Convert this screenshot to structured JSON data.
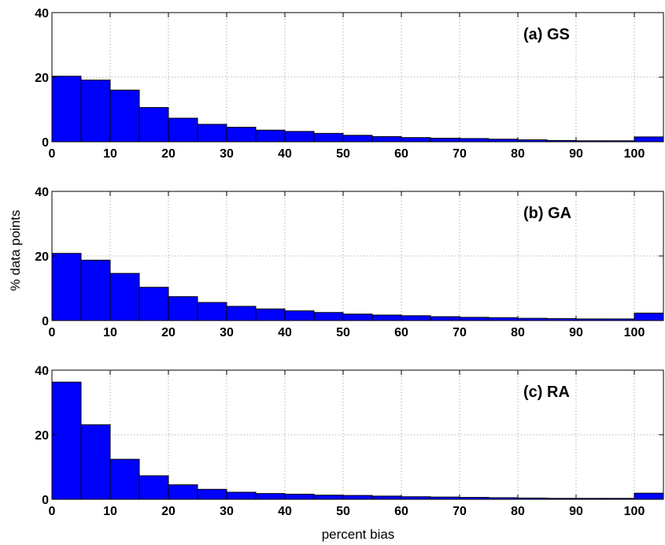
{
  "figure": {
    "ylabel": "% data points",
    "xlabel": "percent bias"
  },
  "colors": {
    "bar": "#0000ff",
    "bar_edge": "#000000",
    "grid": "#9a9a9a"
  },
  "chart_data": [
    {
      "type": "bar",
      "title": "(a) GS",
      "bin_width": 5,
      "categories": [
        0,
        5,
        10,
        15,
        20,
        25,
        30,
        35,
        40,
        45,
        50,
        55,
        60,
        65,
        70,
        75,
        80,
        85,
        90,
        95,
        100
      ],
      "values": [
        20.3,
        19.1,
        16.0,
        10.6,
        7.3,
        5.4,
        4.5,
        3.6,
        3.2,
        2.6,
        2.0,
        1.6,
        1.3,
        1.1,
        1.0,
        0.8,
        0.6,
        0.4,
        0.3,
        0.3,
        1.5
      ],
      "xlim": [
        0,
        105
      ],
      "ylim": [
        0,
        40
      ],
      "xticks": [
        0,
        10,
        20,
        30,
        40,
        50,
        60,
        70,
        80,
        90,
        100
      ],
      "yticks": [
        0,
        20,
        40
      ],
      "grid": true
    },
    {
      "type": "bar",
      "title": "(b) GA",
      "bin_width": 5,
      "categories": [
        0,
        5,
        10,
        15,
        20,
        25,
        30,
        35,
        40,
        45,
        50,
        55,
        60,
        65,
        70,
        75,
        80,
        85,
        90,
        95,
        100
      ],
      "values": [
        20.8,
        18.7,
        14.6,
        10.3,
        7.4,
        5.6,
        4.4,
        3.6,
        3.0,
        2.5,
        2.0,
        1.7,
        1.5,
        1.2,
        1.0,
        0.9,
        0.7,
        0.6,
        0.5,
        0.5,
        2.3
      ],
      "xlim": [
        0,
        105
      ],
      "ylim": [
        0,
        40
      ],
      "xticks": [
        0,
        10,
        20,
        30,
        40,
        50,
        60,
        70,
        80,
        90,
        100
      ],
      "yticks": [
        0,
        20,
        40
      ],
      "grid": true
    },
    {
      "type": "bar",
      "title": "(c) RA",
      "bin_width": 5,
      "categories": [
        0,
        5,
        10,
        15,
        20,
        25,
        30,
        35,
        40,
        45,
        50,
        55,
        60,
        65,
        70,
        75,
        80,
        85,
        90,
        95,
        100
      ],
      "values": [
        36.3,
        23.1,
        12.4,
        7.3,
        4.5,
        3.1,
        2.2,
        1.8,
        1.6,
        1.3,
        1.2,
        1.0,
        0.8,
        0.7,
        0.6,
        0.5,
        0.4,
        0.3,
        0.3,
        0.3,
        1.9
      ],
      "xlim": [
        0,
        105
      ],
      "ylim": [
        0,
        40
      ],
      "xticks": [
        0,
        10,
        20,
        30,
        40,
        50,
        60,
        70,
        80,
        90,
        100
      ],
      "yticks": [
        0,
        20,
        40
      ],
      "grid": true
    }
  ]
}
